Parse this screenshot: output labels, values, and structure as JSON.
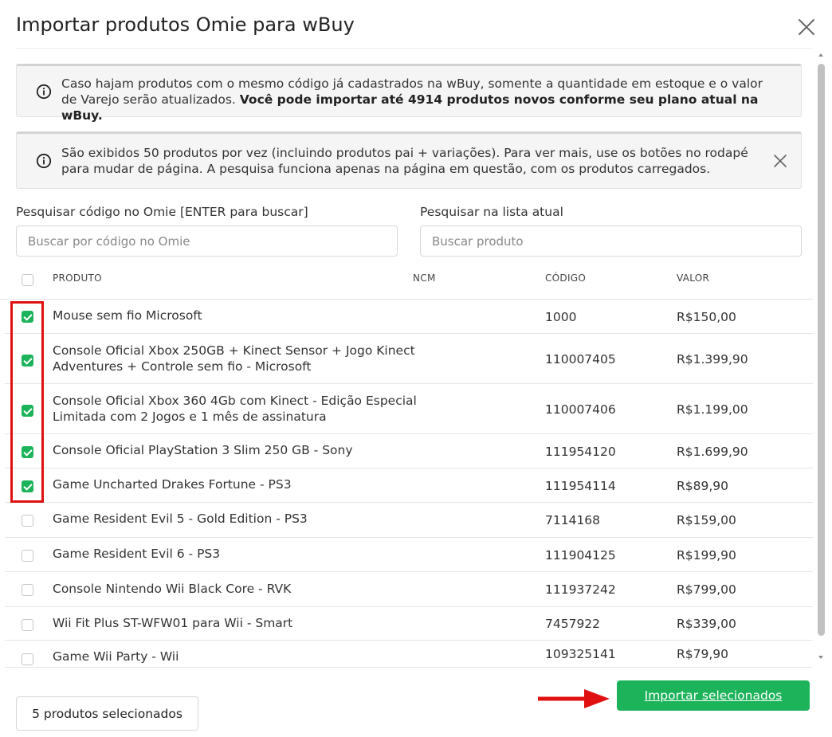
{
  "modal": {
    "title": "Importar produtos Omie para wBuy"
  },
  "alerts": {
    "info1_text": "Caso hajam produtos com o mesmo código já cadastrados na wBuy, somente a quantidade em estoque e o valor de Varejo serão atualizados. ",
    "info1_bold": "Você pode importar até 4914 produtos novos conforme seu plano atual na wBuy.",
    "info2_text": "São exibidos 50 produtos por vez (incluindo produtos pai + variações). Para ver mais, use os botões no rodapé para mudar de página. A pesquisa funciona apenas na página em questão, com os produtos carregados."
  },
  "search": {
    "omie_label": "Pesquisar código no Omie [ENTER para buscar]",
    "omie_placeholder": "Buscar por código no Omie",
    "list_label": "Pesquisar na lista atual",
    "list_placeholder": "Buscar produto"
  },
  "table": {
    "headers": {
      "product": "PRODUTO",
      "ncm": "NCM",
      "code": "CÓDIGO",
      "value": "VALOR"
    },
    "rows": [
      {
        "product": "Mouse sem fio Microsoft",
        "code": "1000",
        "value": "R$150,00",
        "checked": true
      },
      {
        "product": "Console Oficial Xbox 250GB + Kinect Sensor + Jogo Kinect Adventures + Controle sem fio - Microsoft",
        "code": "110007405",
        "value": "R$1.399,90",
        "checked": true
      },
      {
        "product": "Console Oficial Xbox 360 4Gb com Kinect - Edição Especial Limitada com 2 Jogos e 1 mês de assinatura",
        "code": "110007406",
        "value": "R$1.199,00",
        "checked": true
      },
      {
        "product": "Console Oficial PlayStation 3 Slim 250 GB - Sony",
        "code": "111954120",
        "value": "R$1.699,90",
        "checked": true
      },
      {
        "product": "Game Uncharted Drakes Fortune - PS3",
        "code": "111954114",
        "value": "R$89,90",
        "checked": true
      },
      {
        "product": "Game Resident Evil 5 - Gold Edition - PS3",
        "code": "7114168",
        "value": "R$159,00",
        "checked": false
      },
      {
        "product": "Game Resident Evil 6 - PS3",
        "code": "111904125",
        "value": "R$199,90",
        "checked": false
      },
      {
        "product": "Console Nintendo Wii Black Core - RVK",
        "code": "111937242",
        "value": "R$799,00",
        "checked": false
      },
      {
        "product": "Wii Fit Plus ST-WFW01 para Wii - Smart",
        "code": "7457922",
        "value": "R$339,00",
        "checked": false
      },
      {
        "product": "Game Wii Party - Wii",
        "code": "109325141",
        "value": "R$79,90",
        "checked": false
      }
    ]
  },
  "footer": {
    "selected_count": "5 produtos selecionados",
    "import_button": "Importar selecionados"
  },
  "colors": {
    "accent_green": "#1db35a",
    "highlight_red": "#e01010"
  }
}
